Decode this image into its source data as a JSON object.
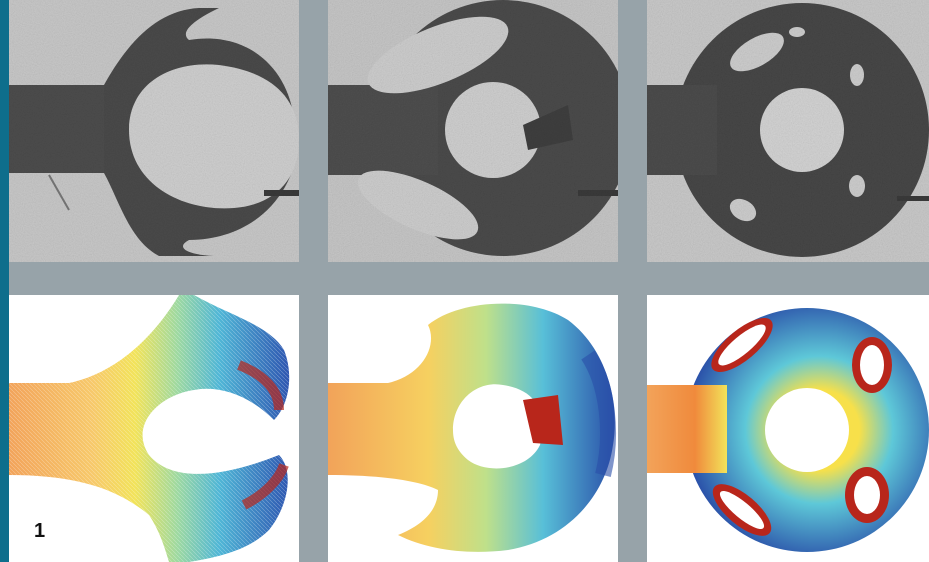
{
  "figure": {
    "label": "1"
  },
  "photos": [
    {
      "id": "photo-1"
    },
    {
      "id": "photo-2"
    },
    {
      "id": "photo-3"
    }
  ],
  "simulations": [
    {
      "id": "sim-1"
    },
    {
      "id": "sim-2"
    },
    {
      "id": "sim-3"
    }
  ],
  "colors": {
    "accent": "#0e6e8c",
    "divider": "#97a3a9",
    "photo_background": "#c9c9c9",
    "photo_solid": "#4a4a4a",
    "sim_background": "#ffffff",
    "sim_hot": "#b8261b",
    "sim_warm": "#f08a3c",
    "sim_mid": "#f7e04a",
    "sim_cool": "#5ec8d8",
    "sim_cold": "#2a4fa8"
  }
}
